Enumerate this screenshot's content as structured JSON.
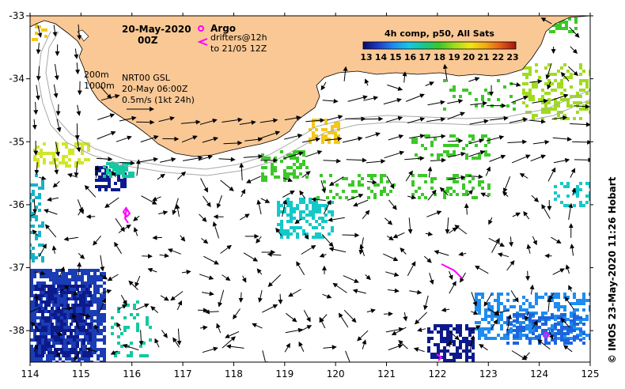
{
  "map": {
    "date": "20-May-2020",
    "hour": "00Z",
    "argo_label": "Argo",
    "drifters_line1": "drifters@12h",
    "drifters_line2": "to 21/05 12Z",
    "isobath_200": "200m",
    "isobath_1000": "1000m",
    "product": "NRT00 GSL",
    "product_time": "20-May 06:00Z",
    "scale_label": "0.5m/s (1kt 24h)",
    "colorbar_title": "4h comp, p50, All Sats",
    "colorbar_ticks": [
      "13",
      "14",
      "15",
      "16",
      "17",
      "18",
      "19",
      "20",
      "21",
      "22",
      "23"
    ],
    "colorbar_range": [
      13,
      23
    ],
    "credit": "© IMOS 23-May-2020 11:26 Hobart",
    "x_ticks": [
      "114",
      "115",
      "116",
      "117",
      "118",
      "119",
      "120",
      "121",
      "122",
      "123",
      "124",
      "125"
    ],
    "y_ticks": [
      "-33",
      "-34",
      "-35",
      "-36",
      "-37",
      "-38"
    ],
    "lon_range": [
      114,
      125
    ],
    "lat_range": [
      -38.5,
      -33
    ],
    "colors": {
      "land": "#f9c895",
      "argo": "#ff00ff",
      "drifter": "#ff00ff",
      "isobath": "#a8a8a8",
      "arrow": "#000000"
    }
  }
}
